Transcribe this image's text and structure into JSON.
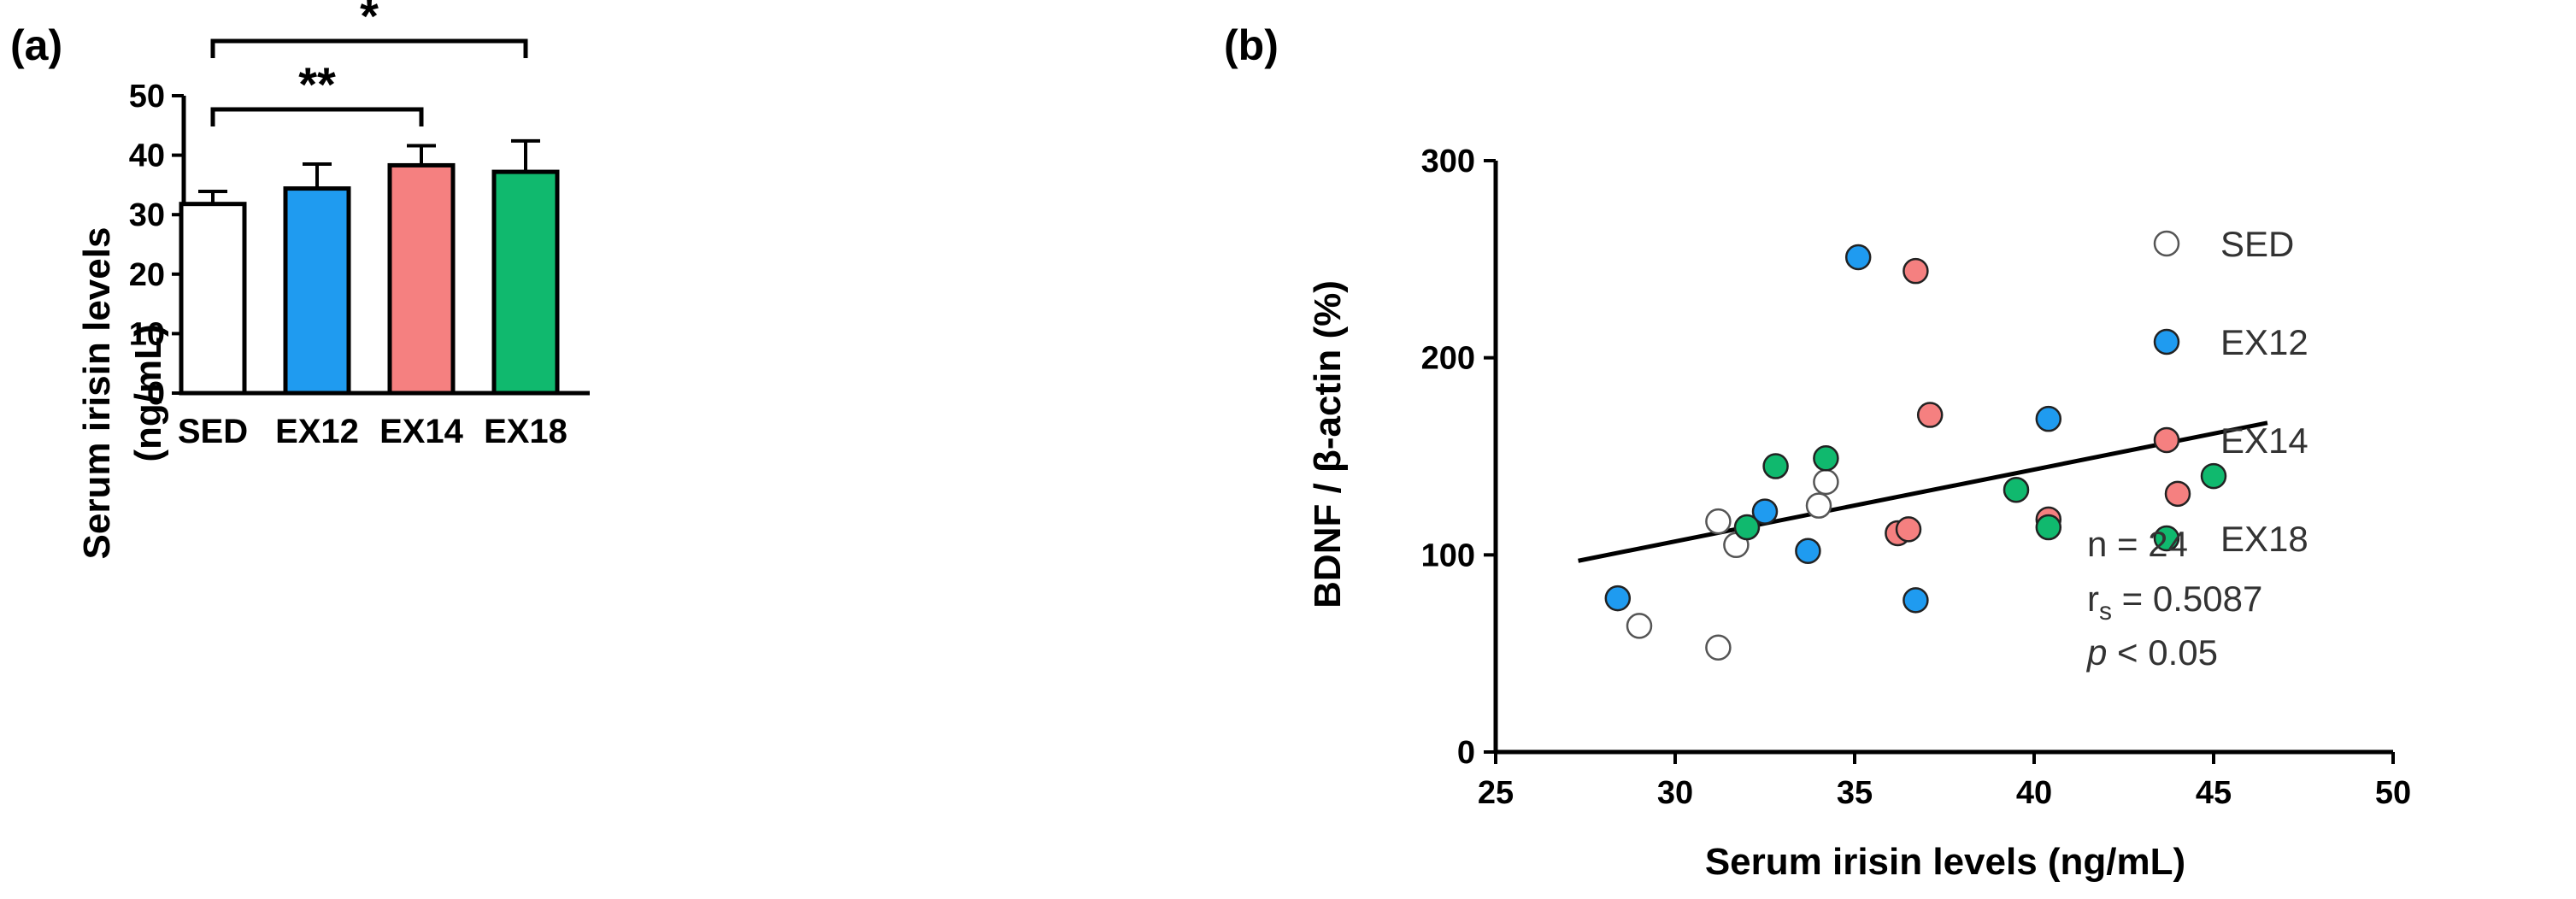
{
  "chart_data": [
    {
      "panel": "(a)",
      "type": "bar",
      "ylabel_line1": "Serum irisin levels",
      "ylabel_line2": "(ng/mL)",
      "ylim": [
        0,
        50
      ],
      "yticks": [
        0,
        10,
        20,
        30,
        40,
        50
      ],
      "categories": [
        "SED",
        "EX12",
        "EX14",
        "EX18"
      ],
      "values": [
        31.8,
        34.4,
        38.3,
        37.2
      ],
      "errors": [
        2.1,
        4.1,
        3.3,
        5.2
      ],
      "colors": [
        "#ffffff",
        "#1f9bf0",
        "#f58080",
        "#10b96e"
      ],
      "significance": [
        {
          "from": "SED",
          "to": "EX14",
          "label": "**"
        },
        {
          "from": "SED",
          "to": "EX18",
          "label": "*"
        }
      ]
    },
    {
      "panel": "(b)",
      "type": "scatter",
      "xlabel": "Serum irisin levels (ng/mL)",
      "ylabel": "BDNF / β-actin (%)",
      "xlim": [
        25,
        50
      ],
      "ylim": [
        0,
        300
      ],
      "xticks": [
        25,
        30,
        35,
        40,
        45,
        50
      ],
      "yticks": [
        0,
        100,
        200,
        300
      ],
      "series": [
        {
          "name": "SED",
          "color": "#ffffff",
          "points": [
            [
              29.0,
              64
            ],
            [
              31.2,
              53
            ],
            [
              31.2,
              117
            ],
            [
              31.7,
              105
            ],
            [
              34.0,
              125
            ],
            [
              34.2,
              137
            ]
          ]
        },
        {
          "name": "EX12",
          "color": "#1f9bf0",
          "points": [
            [
              28.4,
              78
            ],
            [
              32.5,
              122
            ],
            [
              33.7,
              102
            ],
            [
              35.1,
              251
            ],
            [
              36.7,
              77
            ],
            [
              40.4,
              169
            ]
          ]
        },
        {
          "name": "EX14",
          "color": "#f58080",
          "points": [
            [
              36.2,
              111
            ],
            [
              36.5,
              113
            ],
            [
              36.7,
              244
            ],
            [
              37.1,
              171
            ],
            [
              40.4,
              118
            ],
            [
              44.0,
              131
            ]
          ]
        },
        {
          "name": "EX18",
          "color": "#10b96e",
          "points": [
            [
              32.0,
              114
            ],
            [
              32.8,
              145
            ],
            [
              34.2,
              149
            ],
            [
              39.5,
              133
            ],
            [
              40.4,
              114
            ],
            [
              45.0,
              140
            ]
          ]
        }
      ],
      "regression": {
        "x": [
          27.3,
          46.5
        ],
        "y": [
          97,
          167
        ]
      },
      "stats": {
        "n": "n = 24",
        "rs_prefix": "r",
        "rs_sub": "s",
        "rs_value": " = 0.5087",
        "p_label": "p",
        "p_value": " < 0.05"
      }
    }
  ]
}
